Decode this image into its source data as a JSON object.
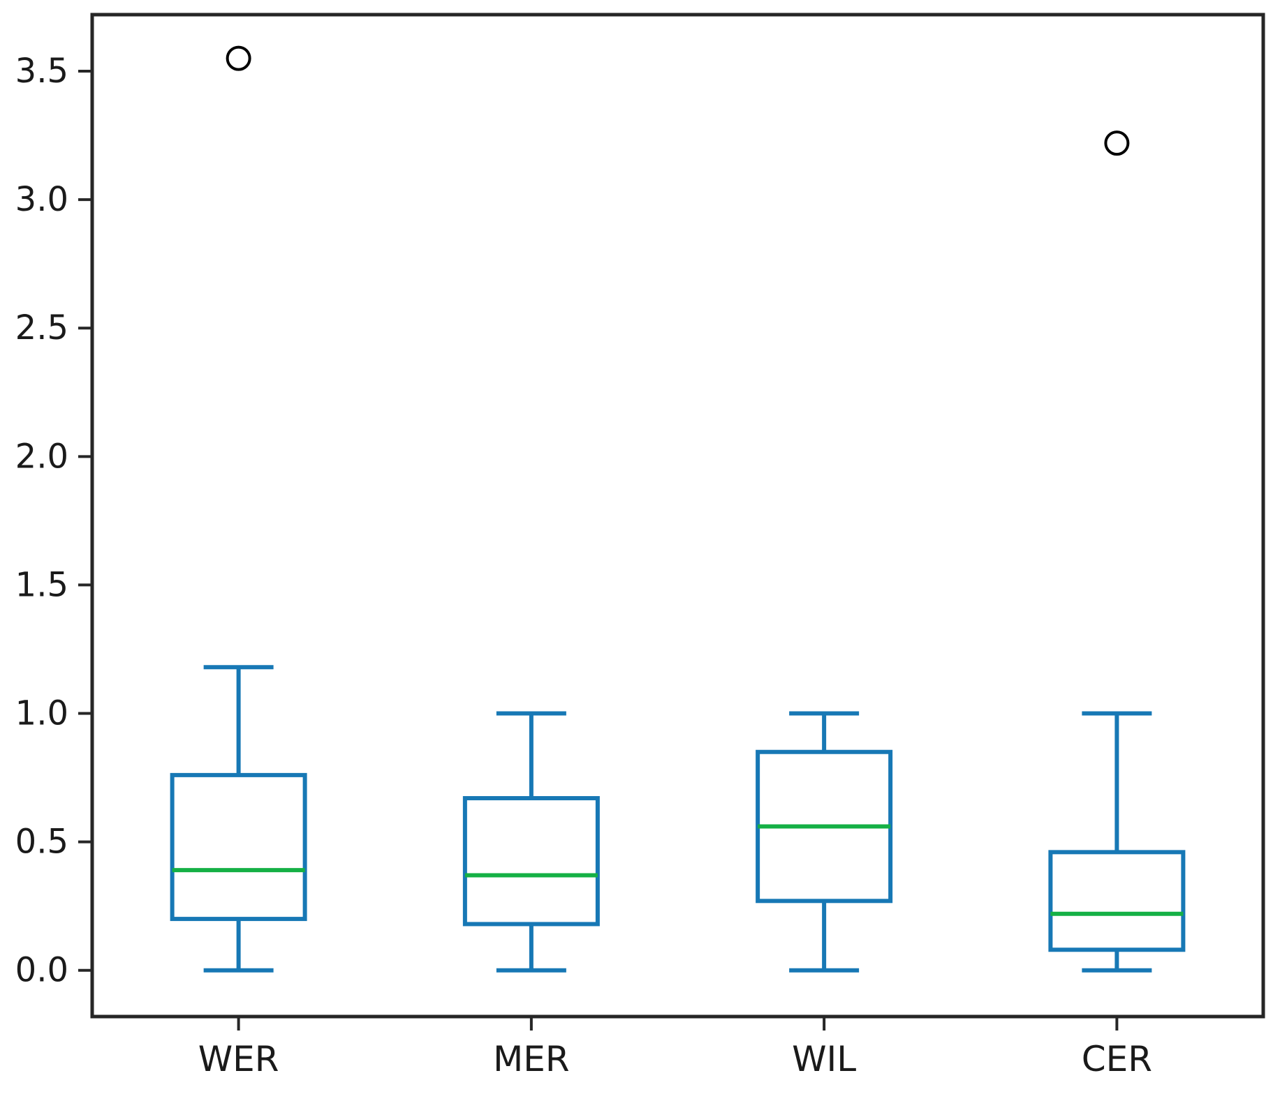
{
  "figure": {
    "background": "#ffffff"
  },
  "chart_data": {
    "type": "box",
    "title": "",
    "xlabel": "",
    "ylabel": "",
    "grid": false,
    "legend": "none",
    "categories": [
      "WER",
      "MER",
      "WIL",
      "CER"
    ],
    "series": [
      {
        "name": "WER",
        "whislo": 0.0,
        "q1": 0.2,
        "med": 0.39,
        "q3": 0.76,
        "whishi": 1.18,
        "fliers": [
          3.55
        ]
      },
      {
        "name": "MER",
        "whislo": 0.0,
        "q1": 0.18,
        "med": 0.37,
        "q3": 0.67,
        "whishi": 1.0,
        "fliers": []
      },
      {
        "name": "WIL",
        "whislo": 0.0,
        "q1": 0.27,
        "med": 0.56,
        "q3": 0.85,
        "whishi": 1.0,
        "fliers": []
      },
      {
        "name": "CER",
        "whislo": 0.0,
        "q1": 0.08,
        "med": 0.22,
        "q3": 0.46,
        "whishi": 1.0,
        "fliers": [
          3.22
        ]
      }
    ],
    "ytick_labels": [
      "0.0",
      "0.5",
      "1.0",
      "1.5",
      "2.0",
      "2.5",
      "3.0",
      "3.5"
    ],
    "ytick_values": [
      0.0,
      0.5,
      1.0,
      1.5,
      2.0,
      2.5,
      3.0,
      3.5
    ],
    "ylim": [
      -0.18,
      3.72
    ],
    "colors": {
      "box": "#1778b5",
      "median": "#15b045",
      "axis": "#262626",
      "flier_edge": "#000000",
      "background": "#ffffff"
    }
  }
}
